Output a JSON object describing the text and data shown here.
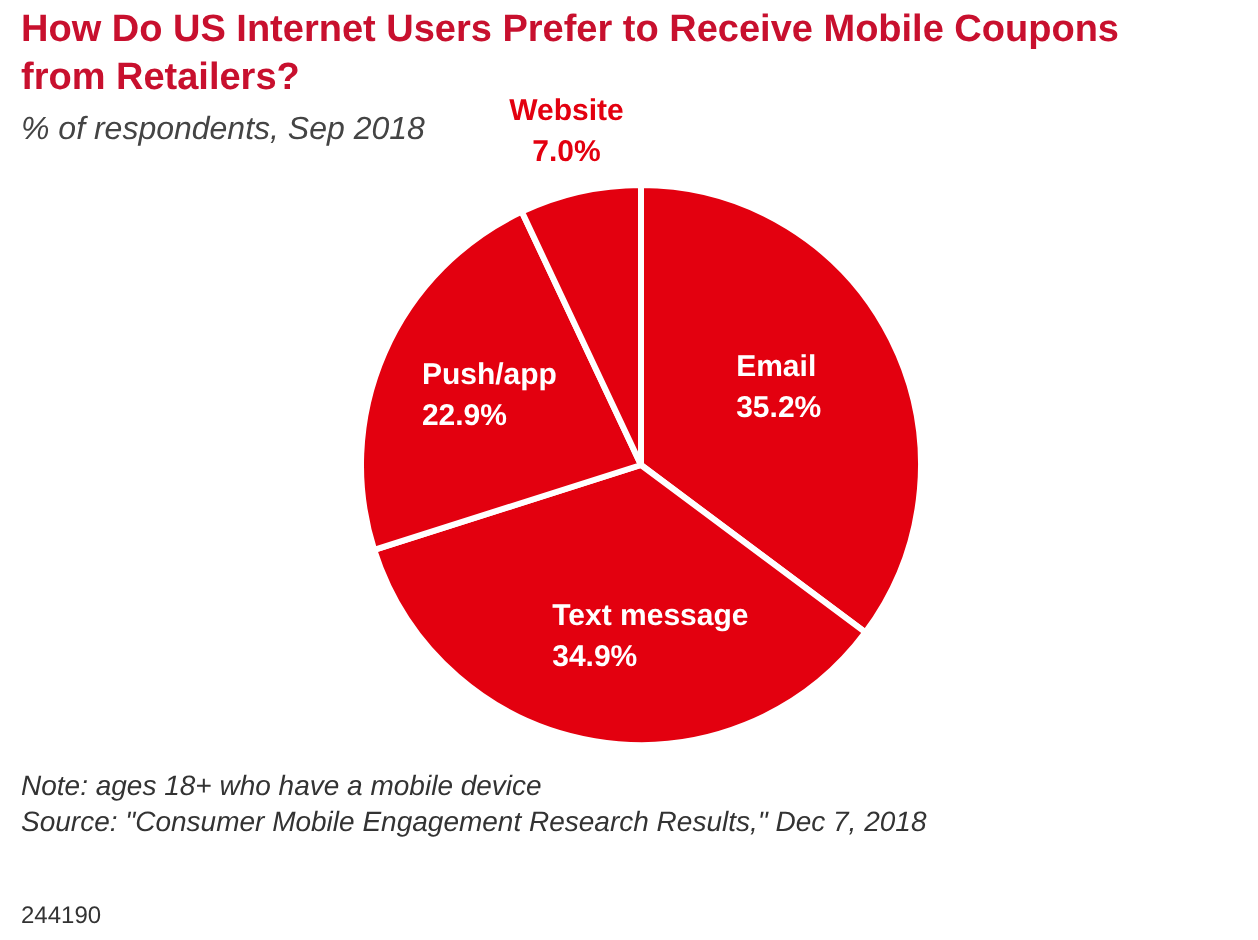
{
  "chart_data": {
    "type": "pie",
    "title": "How Do US Internet Users Prefer to Receive Mobile Coupons from Retailers?",
    "subtitle": "% of respondents, Sep 2018",
    "categories": [
      "Email",
      "Text message",
      "Push/app",
      "Website"
    ],
    "values": [
      35.2,
      34.9,
      22.9,
      7.0
    ],
    "colors": [
      "#e3000f",
      "#e3000f",
      "#e3000f",
      "#e3000f"
    ],
    "data_labels": true,
    "value_labels": [
      "35.2%",
      "34.9%",
      "22.9%",
      "7.0%"
    ],
    "annotations": [
      "Note: ages 18+ who have a mobile device",
      "Source: \"Consumer Mobile Engagement Research Results,\" Dec 7, 2018",
      "244190"
    ]
  }
}
